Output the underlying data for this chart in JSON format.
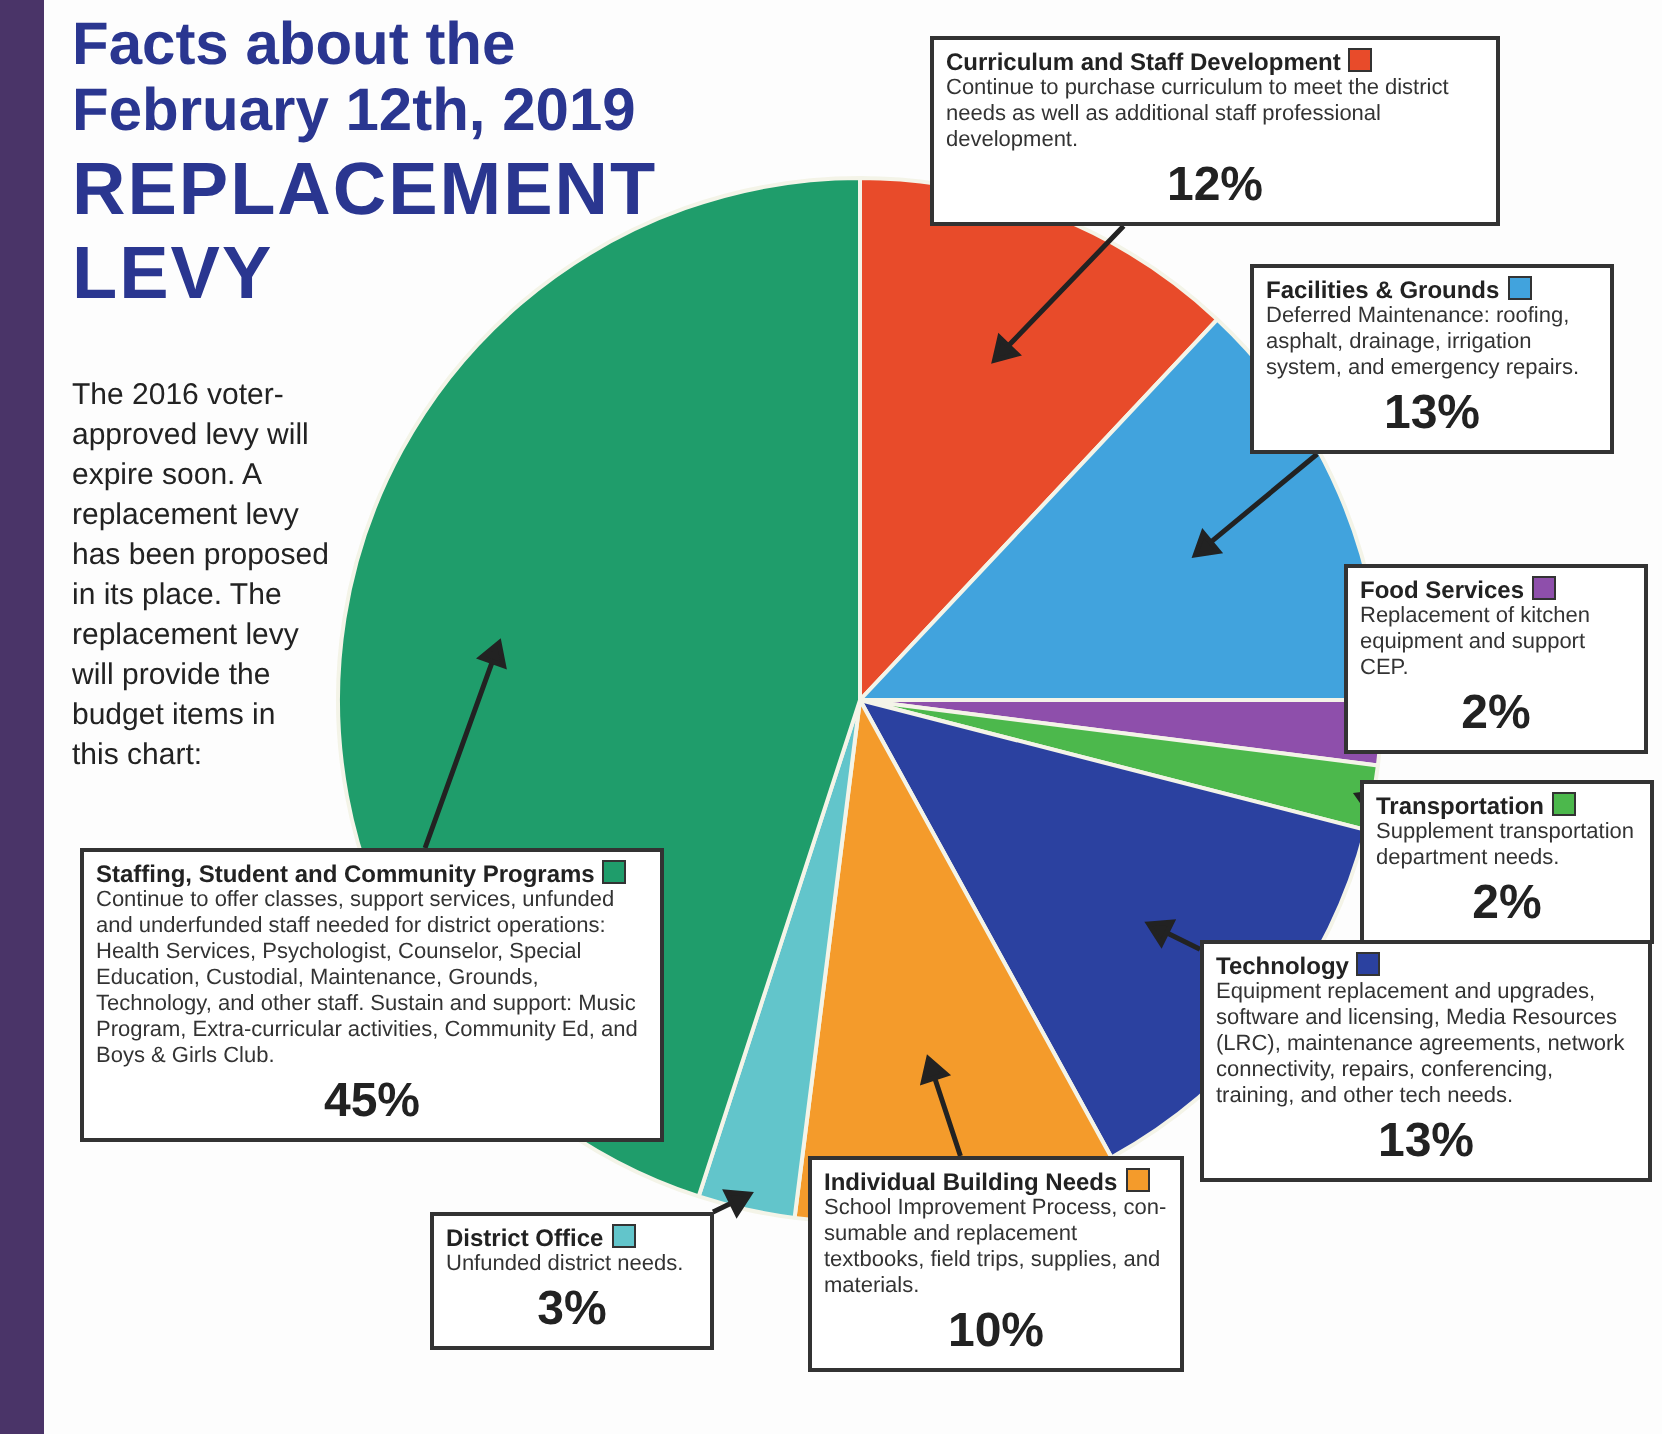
{
  "chart_data": {
    "type": "pie",
    "title": "Facts about the February 12th, 2019",
    "subtitle": "REPLACEMENT LEVY",
    "categories": [
      "Curriculum and Staff Development",
      "Facilities & Grounds",
      "Food Services",
      "Transportation",
      "Technology",
      "Individual Building Needs",
      "District Office",
      "Staffing, Student and Community Programs"
    ],
    "values": [
      12,
      13,
      2,
      2,
      13,
      10,
      3,
      45
    ],
    "colors": [
      "#e84b2a",
      "#41a3dd",
      "#8e4fab",
      "#4cb84c",
      "#2b41a0",
      "#f49b2b",
      "#62c5cb",
      "#1f9d6b"
    ],
    "legend": "right",
    "value_labels": [
      "12%",
      "13%",
      "2%",
      "2%",
      "13%",
      "10%",
      "3%",
      "45%"
    ],
    "annotations": [
      "The 2016 voter-approved levy will expire soon. A replacement levy has been proposed in its place. The replacement levy will provide the budget items in this chart:",
      {
        "text": "Continue to purchase curriculum to meet the district needs as well as additional staff professional development.",
        "x": "Curriculum and Staff Development"
      },
      {
        "text": "Deferred Maintenance: roofing, asphalt, drainage, irrigation system, and emergency repairs.",
        "x": "Facilities & Grounds"
      },
      {
        "text": "Replacement of kitchen equipment and support CEP.",
        "x": "Food Services"
      },
      {
        "text": "Supplement transportation department needs.",
        "x": "Transportation"
      },
      {
        "text": "Equipment replacement and upgrades, software and licensing, Media Resources (LRC), maintenance agreements, network connectivity, repairs, conferencing, training, and other tech needs.",
        "x": "Technology"
      },
      {
        "text": "School Improvement Process, con-sumable and replacement textbooks, field trips, supplies, and materials.",
        "x": "Individual Building Needs"
      },
      {
        "text": "Unfunded district needs.",
        "x": "District Office"
      },
      {
        "text": "Continue to offer classes, support services, unfunded and underfunded staff needed for district operations: Health Services, Psychologist, Counselor, Special Education, Custodial, Maintenance, Grounds, Technology, and other staff. Sustain and support: Music Program, Extra-curricular activities, Community Ed, and Boys & Girls Club.",
        "x": "Staffing, Student and Community Programs"
      }
    ]
  }
}
